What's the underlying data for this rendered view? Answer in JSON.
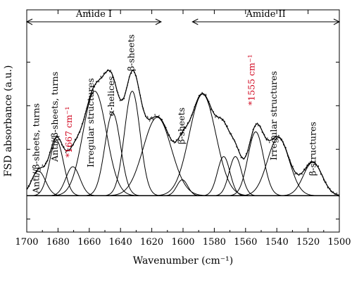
{
  "chart_data": {
    "type": "line",
    "xlabel": "Wavenumber (cm⁻¹)",
    "ylabel": "FSD absorbance (a.u.)",
    "xlim": [
      1700,
      1500
    ],
    "x_reversed": true,
    "xticks": [
      1700,
      1680,
      1660,
      1640,
      1620,
      1600,
      1580,
      1560,
      1540,
      1520,
      1500
    ],
    "y_ticks_labeled": false,
    "baseline_y": 0,
    "ylim": [
      -0.25,
      1.28
    ],
    "regions": [
      {
        "label": "Amide I",
        "from": 1700,
        "to": 1614
      },
      {
        "label": "Amide II",
        "from": 1594,
        "to": 1500
      }
    ],
    "components": [
      {
        "center": 1692.5,
        "height": 0.17,
        "width": 4.5
      },
      {
        "center": 1681.0,
        "height": 0.38,
        "width": 4.5
      },
      {
        "center": 1670.5,
        "height": 0.2,
        "width": 4.5
      },
      {
        "center": 1656.5,
        "height": 0.72,
        "width": 7.5
      },
      {
        "center": 1645.0,
        "height": 0.57,
        "width": 5.0
      },
      {
        "center": 1632.5,
        "height": 0.72,
        "width": 5.0
      },
      {
        "center": 1616.5,
        "height": 0.54,
        "width": 9.0
      },
      {
        "center": 1600.5,
        "height": 0.11,
        "width": 3.5
      },
      {
        "center": 1587.5,
        "height": 0.7,
        "width": 8.5
      },
      {
        "center": 1574.0,
        "height": 0.27,
        "width": 4.0
      },
      {
        "center": 1566.5,
        "height": 0.27,
        "width": 4.0
      },
      {
        "center": 1553.5,
        "height": 0.44,
        "width": 5.0
      },
      {
        "center": 1539.0,
        "height": 0.4,
        "width": 7.0
      },
      {
        "center": 1517.0,
        "height": 0.23,
        "width": 6.0
      }
    ],
    "annotations": [
      {
        "text": "Anti//β-sheets, turns",
        "x": 1694,
        "style": "black"
      },
      {
        "text": "Anti//β-sheets, turns",
        "x": 1682,
        "style": "black"
      },
      {
        "text": "*1667 cm⁻¹",
        "x": 1673,
        "style": "red"
      },
      {
        "text": "Irregular structures",
        "x": 1659,
        "style": "black"
      },
      {
        "text": "α-helices",
        "x": 1646,
        "style": "black"
      },
      {
        "text": "β-sheets",
        "x": 1633,
        "style": "black"
      },
      {
        "text": "β-sheets",
        "x": 1601,
        "style": "black"
      },
      {
        "text": "*1555 cm⁻¹",
        "x": 1556,
        "style": "red"
      },
      {
        "text": "Irregular structures",
        "x": 1542,
        "style": "black"
      },
      {
        "text": "β-structures",
        "x": 1517,
        "style": "black"
      }
    ]
  }
}
